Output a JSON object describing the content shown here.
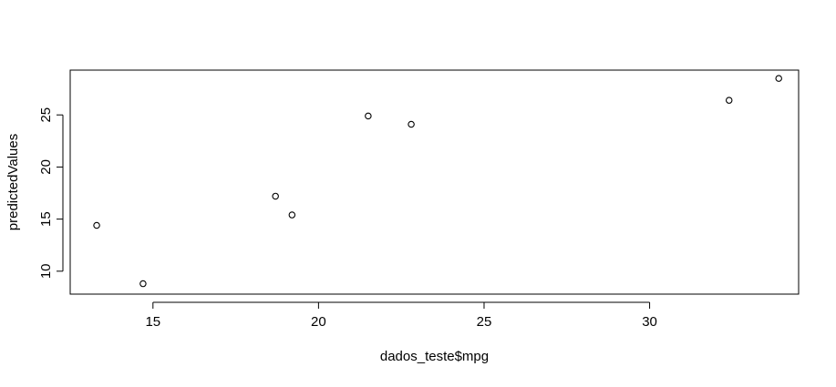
{
  "chart_data": {
    "type": "scatter",
    "title": "",
    "xlabel": "dados_teste$mpg",
    "ylabel": "predictedValues",
    "xlim": [
      12.5,
      34.5
    ],
    "ylim": [
      7.8,
      29.3
    ],
    "x_ticks": [
      "15",
      "20",
      "25",
      "30"
    ],
    "y_ticks": [
      "10",
      "15",
      "20",
      "25"
    ],
    "grid": false,
    "point_color": "#000000",
    "points": [
      {
        "x": 13.3,
        "y": 14.4
      },
      {
        "x": 14.7,
        "y": 8.8
      },
      {
        "x": 18.7,
        "y": 17.2
      },
      {
        "x": 19.2,
        "y": 15.4
      },
      {
        "x": 21.5,
        "y": 24.9
      },
      {
        "x": 22.8,
        "y": 24.1
      },
      {
        "x": 32.4,
        "y": 26.4
      },
      {
        "x": 33.9,
        "y": 28.5
      }
    ]
  }
}
